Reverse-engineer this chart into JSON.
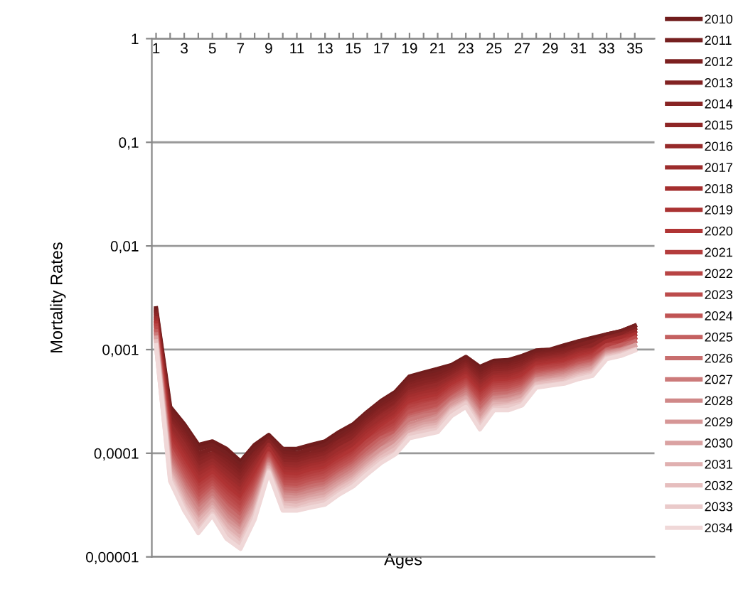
{
  "chart_data": {
    "type": "line",
    "xlabel": "Ages",
    "ylabel": "Mortality Rates",
    "log": "y",
    "grid": "y",
    "legend": "right",
    "marker": "none",
    "line_style": "solid",
    "categories": [
      "1",
      null,
      "3",
      null,
      "5",
      null,
      "7",
      null,
      "9",
      null,
      "11",
      null,
      "13",
      null,
      "15",
      null,
      "17",
      null,
      "19",
      null,
      "21",
      null,
      "23",
      null,
      "25",
      null,
      "27",
      null,
      "29",
      null,
      "31",
      null,
      "33",
      null,
      "35"
    ],
    "ylim": [
      1e-05,
      1
    ],
    "yticks": [
      {
        "value": 1e-05,
        "label": "0,00001"
      },
      {
        "value": 0.0001,
        "label": "0,0001"
      },
      {
        "value": 0.001,
        "label": "0,001"
      },
      {
        "value": 0.01,
        "label": "0,01"
      },
      {
        "value": 0.1,
        "label": "0,1"
      },
      1
    ],
    "series": [
      {
        "name": "2010",
        "color": "#701c1c",
        "values": [
          0.0025,
          0.00028,
          0.00019,
          0.00012,
          0.00013,
          0.00011,
          8.3e-05,
          0.00012,
          0.00015,
          0.00011,
          0.00011,
          0.00012,
          0.00013,
          0.00016,
          0.00019,
          0.00025,
          0.00032,
          0.00039,
          0.00055,
          0.0006,
          0.00065,
          0.00071,
          0.00085,
          0.00068,
          0.00078,
          0.00079,
          0.00087,
          0.00098,
          0.001,
          0.0011,
          0.0012,
          0.0013,
          0.0014,
          0.0015,
          0.0017
        ]
      },
      {
        "name": "2011",
        "color": "#762020",
        "values": [
          0.0024,
          0.00026,
          0.00018,
          0.00011,
          0.00012,
          9.9e-05,
          7.7e-05,
          0.00011,
          0.00014,
          0.00011,
          0.0001,
          0.00011,
          0.00012,
          0.00015,
          0.00018,
          0.00024,
          0.00031,
          0.00037,
          0.00052,
          0.00057,
          0.00061,
          0.00068,
          0.00081,
          0.00064,
          0.00074,
          0.00076,
          0.00083,
          0.00094,
          0.00099,
          0.001,
          0.0012,
          0.0012,
          0.0014,
          0.0015,
          0.0017
        ]
      },
      {
        "name": "2012",
        "color": "#7c2020",
        "values": [
          0.0023,
          0.00025,
          0.00016,
          0.0001,
          0.00011,
          9.1e-05,
          7.1e-05,
          0.0001,
          0.00014,
          0.0001,
          9.8e-05,
          0.00011,
          0.00011,
          0.00014,
          0.00017,
          0.00022,
          0.00029,
          0.00035,
          0.00049,
          0.00054,
          0.00058,
          0.00065,
          0.00078,
          0.0006,
          0.00071,
          0.00072,
          0.00079,
          0.00091,
          0.00095,
          0.001,
          0.0011,
          0.0012,
          0.0013,
          0.0014,
          0.0016
        ]
      },
      {
        "name": "2013",
        "color": "#822222",
        "values": [
          0.0023,
          0.00023,
          0.00015,
          9.2e-05,
          0.0001,
          8.4e-05,
          6.5e-05,
          9.8e-05,
          0.00013,
          9.4e-05,
          9.2e-05,
          0.0001,
          0.00011,
          0.00013,
          0.00016,
          0.00021,
          0.00027,
          0.00033,
          0.00046,
          0.00051,
          0.00054,
          0.00062,
          0.00074,
          0.00057,
          0.00068,
          0.00069,
          0.00076,
          0.00088,
          0.00092,
          0.00097,
          0.0011,
          0.0012,
          0.0013,
          0.0014,
          0.0016
        ]
      },
      {
        "name": "2014",
        "color": "#882424",
        "values": [
          0.0022,
          0.00021,
          0.00014,
          8.5e-05,
          9.8e-05,
          7.8e-05,
          6e-05,
          9.1e-05,
          0.00013,
          8.9e-05,
          8.7e-05,
          9.5e-05,
          0.0001,
          0.00013,
          0.00015,
          0.0002,
          0.00026,
          0.00031,
          0.00044,
          0.00048,
          0.00051,
          0.00059,
          0.00071,
          0.00054,
          0.00065,
          0.00066,
          0.00072,
          0.00085,
          0.00089,
          0.00093,
          0.001,
          0.0011,
          0.0013,
          0.0014,
          0.0015
        ]
      },
      {
        "name": "2015",
        "color": "#8e2626",
        "values": [
          0.0021,
          0.0002,
          0.00013,
          7.9e-05,
          9.1e-05,
          7.2e-05,
          5.6e-05,
          8.5e-05,
          0.00012,
          8.4e-05,
          8.2e-05,
          9e-05,
          9.7e-05,
          0.00012,
          0.00014,
          0.00019,
          0.00024,
          0.00029,
          0.00041,
          0.00045,
          0.00048,
          0.00056,
          0.00068,
          0.00051,
          0.00062,
          0.00063,
          0.00069,
          0.00082,
          0.00086,
          0.0009,
          0.001,
          0.0011,
          0.0013,
          0.0013,
          0.0015
        ]
      },
      {
        "name": "2016",
        "color": "#962a2a",
        "values": [
          0.002,
          0.00019,
          0.00012,
          7.2e-05,
          8.5e-05,
          6.6e-05,
          5.1e-05,
          7.9e-05,
          0.00012,
          7.9e-05,
          7.8e-05,
          8.5e-05,
          9.1e-05,
          0.00011,
          0.00013,
          0.00018,
          0.00023,
          0.00028,
          0.00039,
          0.00043,
          0.00046,
          0.00054,
          0.00065,
          0.00048,
          0.00059,
          0.0006,
          0.00066,
          0.00079,
          0.00083,
          0.00087,
          0.00098,
          0.001,
          0.0012,
          0.0013,
          0.0015
        ]
      },
      {
        "name": "2017",
        "color": "#9c2c2c",
        "values": [
          0.002,
          0.00017,
          0.00011,
          6.7e-05,
          7.9e-05,
          6.1e-05,
          4.7e-05,
          7.4e-05,
          0.00012,
          7.5e-05,
          7.3e-05,
          8e-05,
          8.6e-05,
          0.00011,
          0.00013,
          0.00017,
          0.00022,
          0.00026,
          0.00037,
          0.0004,
          0.00043,
          0.00051,
          0.00062,
          0.00045,
          0.00056,
          0.00058,
          0.00063,
          0.00077,
          0.0008,
          0.00084,
          0.00094,
          0.001,
          0.0012,
          0.0013,
          0.0014
        ]
      },
      {
        "name": "2018",
        "color": "#a42e2e",
        "values": [
          0.0019,
          0.00016,
          0.0001,
          6.2e-05,
          7.4e-05,
          5.6e-05,
          4.4e-05,
          6.9e-05,
          0.00011,
          7.1e-05,
          6.9e-05,
          7.6e-05,
          8.1e-05,
          0.0001,
          0.00012,
          0.00016,
          0.0002,
          0.00025,
          0.00035,
          0.00038,
          0.00041,
          0.00049,
          0.00059,
          0.00043,
          0.00054,
          0.00055,
          0.0006,
          0.00074,
          0.00078,
          0.00081,
          0.00091,
          0.00098,
          0.0012,
          0.0013,
          0.0014
        ]
      },
      {
        "name": "2019",
        "color": "#aa3232",
        "values": [
          0.0018,
          0.00015,
          9.2e-05,
          5.7e-05,
          6.9e-05,
          5.2e-05,
          4e-05,
          6.5e-05,
          0.00011,
          6.7e-05,
          6.5e-05,
          7.2e-05,
          7.7e-05,
          9.4e-05,
          0.00011,
          0.00015,
          0.00019,
          0.00023,
          0.00033,
          0.00036,
          0.00038,
          0.00047,
          0.00056,
          0.0004,
          0.00051,
          0.00052,
          0.00058,
          0.00072,
          0.00075,
          0.00079,
          0.00088,
          0.00094,
          0.0011,
          0.0012,
          0.0014
        ]
      },
      {
        "name": "2020",
        "color": "#b03434",
        "values": [
          0.0018,
          0.00014,
          8.5e-05,
          5.2e-05,
          6.5e-05,
          4.8e-05,
          3.7e-05,
          6e-05,
          0.0001,
          6.3e-05,
          6.2e-05,
          6.8e-05,
          7.2e-05,
          8.9e-05,
          0.00011,
          0.00014,
          0.00018,
          0.00022,
          0.00031,
          0.00034,
          0.00036,
          0.00045,
          0.00054,
          0.00038,
          0.00049,
          0.0005,
          0.00055,
          0.00069,
          0.00072,
          0.00076,
          0.00085,
          0.00091,
          0.0011,
          0.0012,
          0.0013
        ]
      },
      {
        "name": "2021",
        "color": "#b43c3c",
        "values": [
          0.0017,
          0.00013,
          7.9e-05,
          4.8e-05,
          6e-05,
          4.4e-05,
          3.4e-05,
          5.6e-05,
          0.0001,
          6e-05,
          5.8e-05,
          6.4e-05,
          6.8e-05,
          8.4e-05,
          0.0001,
          0.00013,
          0.00017,
          0.00021,
          0.00029,
          0.00032,
          0.00034,
          0.00043,
          0.00051,
          0.00036,
          0.00047,
          0.00048,
          0.00052,
          0.00067,
          0.0007,
          0.00073,
          0.00082,
          0.00088,
          0.0011,
          0.0012,
          0.0013
        ]
      },
      {
        "name": "2022",
        "color": "#b84444",
        "values": [
          0.0017,
          0.00012,
          7.2e-05,
          4.5e-05,
          5.6e-05,
          4.1e-05,
          3.2e-05,
          5.2e-05,
          9.8e-05,
          5.6e-05,
          5.5e-05,
          6e-05,
          6.5e-05,
          7.9e-05,
          9.5e-05,
          0.00013,
          0.00016,
          0.00019,
          0.00028,
          0.0003,
          0.00032,
          0.00041,
          0.00049,
          0.00034,
          0.00045,
          0.00046,
          0.0005,
          0.00065,
          0.00068,
          0.00071,
          0.00079,
          0.00085,
          0.0011,
          0.0011,
          0.0013
        ]
      },
      {
        "name": "2023",
        "color": "#bc4c4c",
        "values": [
          0.0016,
          0.00011,
          6.7e-05,
          4.1e-05,
          5.2e-05,
          3.8e-05,
          2.9e-05,
          4.9e-05,
          9.4e-05,
          5.3e-05,
          5.2e-05,
          5.7e-05,
          6.1e-05,
          7.5e-05,
          9e-05,
          0.00012,
          0.00015,
          0.00018,
          0.00026,
          0.00029,
          0.00031,
          0.00039,
          0.00047,
          0.00032,
          0.00043,
          0.00044,
          0.00048,
          0.00062,
          0.00065,
          0.00068,
          0.00077,
          0.00082,
          0.001,
          0.0011,
          0.0013
        ]
      },
      {
        "name": "2024",
        "color": "#c05454",
        "values": [
          0.0015,
          0.00011,
          6.2e-05,
          3.8e-05,
          4.9e-05,
          3.5e-05,
          2.7e-05,
          4.6e-05,
          9.1e-05,
          5e-05,
          4.9e-05,
          5.4e-05,
          5.8e-05,
          7.1e-05,
          8.5e-05,
          0.00011,
          0.00014,
          0.00017,
          0.00025,
          0.00027,
          0.00029,
          0.00037,
          0.00045,
          0.0003,
          0.00041,
          0.00042,
          0.00046,
          0.0006,
          0.00063,
          0.00066,
          0.00074,
          0.00079,
          0.001,
          0.0011,
          0.0012
        ]
      },
      {
        "name": "2025",
        "color": "#c46060",
        "values": [
          0.0015,
          0.0001,
          5.7e-05,
          3.5e-05,
          4.6e-05,
          3.2e-05,
          2.5e-05,
          4.3e-05,
          8.8e-05,
          4.7e-05,
          4.6e-05,
          5.1e-05,
          5.4e-05,
          6.7e-05,
          8e-05,
          0.00011,
          0.00014,
          0.00016,
          0.00023,
          0.00025,
          0.00027,
          0.00035,
          0.00043,
          0.00029,
          0.00039,
          0.0004,
          0.00044,
          0.00058,
          0.00061,
          0.00064,
          0.00072,
          0.00077,
          0.001,
          0.0011,
          0.0012
        ]
      },
      {
        "name": "2026",
        "color": "#c86e6e",
        "values": [
          0.0014,
          9.3e-05,
          5.2e-05,
          3.2e-05,
          4.3e-05,
          3e-05,
          2.3e-05,
          4e-05,
          8.5e-05,
          4.5e-05,
          4.4e-05,
          4.8e-05,
          5.1e-05,
          6.3e-05,
          7.6e-05,
          0.0001,
          0.00013,
          0.00015,
          0.00022,
          0.00024,
          0.00026,
          0.00034,
          0.00041,
          0.00027,
          0.00037,
          0.00038,
          0.00042,
          0.00056,
          0.00059,
          0.00062,
          0.00069,
          0.00074,
          0.00098,
          0.001,
          0.0012
        ]
      },
      {
        "name": "2027",
        "color": "#cc7a7a",
        "values": [
          0.0014,
          8.7e-05,
          4.8e-05,
          3e-05,
          4e-05,
          2.7e-05,
          2.1e-05,
          3.7e-05,
          8.2e-05,
          4.2e-05,
          4.1e-05,
          4.5e-05,
          4.8e-05,
          6e-05,
          7.2e-05,
          9.4e-05,
          0.00012,
          0.00015,
          0.00021,
          0.00023,
          0.00024,
          0.00032,
          0.00039,
          0.00025,
          0.00035,
          0.00036,
          0.0004,
          0.00054,
          0.00057,
          0.0006,
          0.00067,
          0.00072,
          0.00095,
          0.001,
          0.0011
        ]
      },
      {
        "name": "2028",
        "color": "#d08888",
        "values": [
          0.0013,
          8.1e-05,
          4.5e-05,
          2.8e-05,
          3.7e-05,
          2.5e-05,
          1.9e-05,
          3.5e-05,
          7.9e-05,
          4e-05,
          3.9e-05,
          4.3e-05,
          4.6e-05,
          5.6e-05,
          6.8e-05,
          8.9e-05,
          0.00011,
          0.00014,
          0.00019,
          0.00021,
          0.00023,
          0.00031,
          0.00037,
          0.00024,
          0.00034,
          0.00035,
          0.00038,
          0.00052,
          0.00055,
          0.00058,
          0.00065,
          0.00069,
          0.00093,
          0.001,
          0.0011
        ]
      },
      {
        "name": "2029",
        "color": "#d69696",
        "values": [
          0.0013,
          7.6e-05,
          4.1e-05,
          2.5e-05,
          3.5e-05,
          2.3e-05,
          1.8e-05,
          3.2e-05,
          7.7e-05,
          3.8e-05,
          3.7e-05,
          4e-05,
          4.3e-05,
          5.3e-05,
          6.4e-05,
          8.4e-05,
          0.00011,
          0.00013,
          0.00018,
          0.0002,
          0.00022,
          0.0003,
          0.00035,
          0.00023,
          0.00032,
          0.00033,
          0.00036,
          0.00051,
          0.00053,
          0.00056,
          0.00062,
          0.00067,
          0.00091,
          0.00098,
          0.0011
        ]
      },
      {
        "name": "2030",
        "color": "#daa2a2",
        "values": [
          0.0013,
          7.1e-05,
          3.8e-05,
          2.3e-05,
          3.2e-05,
          2.1e-05,
          1.7e-05,
          3e-05,
          7.4e-05,
          3.5e-05,
          3.5e-05,
          3.8e-05,
          4.1e-05,
          5e-05,
          6e-05,
          7.9e-05,
          0.0001,
          0.00012,
          0.00017,
          0.00019,
          0.0002,
          0.00028,
          0.00034,
          0.00021,
          0.00031,
          0.00032,
          0.00035,
          0.00049,
          0.00051,
          0.00054,
          0.0006,
          0.00065,
          0.00089,
          0.00095,
          0.0011
        ]
      },
      {
        "name": "2031",
        "color": "#e0b0b0",
        "values": [
          0.0012,
          6.6e-05,
          3.5e-05,
          2.2e-05,
          3e-05,
          2e-05,
          1.5e-05,
          2.8e-05,
          7.2e-05,
          3.3e-05,
          3.3e-05,
          3.6e-05,
          3.8e-05,
          4.7e-05,
          5.7e-05,
          7.5e-05,
          9.7e-05,
          0.00012,
          0.00016,
          0.00018,
          0.00019,
          0.00027,
          0.00032,
          0.0002,
          0.0003,
          0.0003,
          0.00033,
          0.00047,
          0.0005,
          0.00052,
          0.00058,
          0.00062,
          0.00087,
          0.00093,
          0.001
        ]
      },
      {
        "name": "2032",
        "color": "#e6bebe",
        "values": [
          0.0012,
          6.2e-05,
          3.2e-05,
          2e-05,
          2.8e-05,
          1.8e-05,
          1.4e-05,
          2.6e-05,
          6.9e-05,
          3.2e-05,
          3.1e-05,
          3.4e-05,
          3.6e-05,
          4.5e-05,
          5.4e-05,
          7.1e-05,
          9.1e-05,
          0.00011,
          0.00015,
          0.00017,
          0.00018,
          0.00026,
          0.00031,
          0.00019,
          0.00028,
          0.00029,
          0.00032,
          0.00046,
          0.00048,
          0.0005,
          0.00056,
          0.0006,
          0.00085,
          0.00091,
          0.001
        ]
      },
      {
        "name": "2033",
        "color": "#eacaca",
        "values": [
          0.0011,
          5.8e-05,
          3e-05,
          1.8e-05,
          2.6e-05,
          1.7e-05,
          1.3e-05,
          2.5e-05,
          6.7e-05,
          3e-05,
          2.9e-05,
          3.2e-05,
          3.4e-05,
          4.2e-05,
          5.1e-05,
          6.7e-05,
          8.6e-05,
          0.0001,
          0.00015,
          0.00016,
          0.00017,
          0.00025,
          0.0003,
          0.00018,
          0.00027,
          0.00028,
          0.0003,
          0.00044,
          0.00046,
          0.00048,
          0.00054,
          0.00058,
          0.00083,
          0.00089,
          0.001
        ]
      },
      {
        "name": "2034",
        "color": "#f0d8d8",
        "values": [
          0.0011,
          5.4e-05,
          2.8e-05,
          1.7e-05,
          2.5e-05,
          1.5e-05,
          1.2e-05,
          2.3e-05,
          6.5e-05,
          2.8e-05,
          2.8e-05,
          3e-05,
          3.2e-05,
          4e-05,
          4.8e-05,
          6.3e-05,
          8.1e-05,
          9.8e-05,
          0.00014,
          0.00015,
          0.00016,
          0.00023,
          0.00028,
          0.00017,
          0.00026,
          0.00026,
          0.00029,
          0.00043,
          0.00045,
          0.00047,
          0.00052,
          0.00056,
          0.00081,
          0.00087,
          0.00098
        ]
      }
    ]
  }
}
